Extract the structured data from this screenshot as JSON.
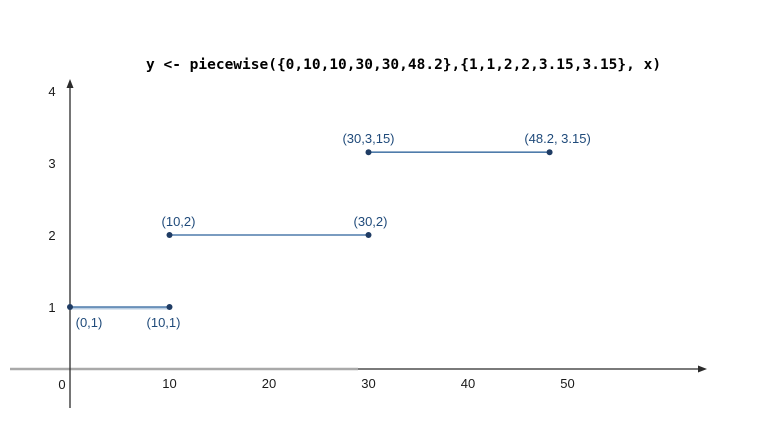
{
  "chart_data": {
    "type": "line",
    "title": "y <- piecewise({0,10,10,30,30,48.2},{1,1,2,2,3.15,3.15}, x)",
    "xlabel": "",
    "ylabel": "",
    "xlim": [
      0,
      63
    ],
    "ylim": [
      0,
      4.2
    ],
    "grid": false,
    "function": "piecewise",
    "x_breaks": [
      0,
      10,
      10,
      30,
      30,
      48.2
    ],
    "y_values": [
      1,
      1,
      2,
      2,
      3.15,
      3.15
    ],
    "x_ticks": [
      {
        "label": "10",
        "value": 10
      },
      {
        "label": "20",
        "value": 20
      },
      {
        "label": "30",
        "value": 30
      },
      {
        "label": "40",
        "value": 40
      },
      {
        "label": "50",
        "value": 50
      }
    ],
    "y_ticks": [
      {
        "label": "1",
        "value": 1
      },
      {
        "label": "2",
        "value": 2
      },
      {
        "label": "3",
        "value": 3
      },
      {
        "label": "4",
        "value": 4
      }
    ],
    "origin_label": "0",
    "segments": [
      {
        "points": [
          {
            "x": 0,
            "y": 1,
            "label": "(0,1)",
            "label_pos": "below",
            "label_dx": 19
          },
          {
            "x": 10,
            "y": 1,
            "label": "(10,1)",
            "label_pos": "below",
            "label_dx": -6
          }
        ]
      },
      {
        "points": [
          {
            "x": 10,
            "y": 2,
            "label": "(10,2)",
            "label_pos": "above",
            "label_dx": 9
          },
          {
            "x": 30,
            "y": 2,
            "label": "(30,2)",
            "label_pos": "above",
            "label_dx": 2
          }
        ]
      },
      {
        "points": [
          {
            "x": 30,
            "y": 3.15,
            "label": "(30,3,15)",
            "label_pos": "above",
            "label_dx": 0
          },
          {
            "x": 48.2,
            "y": 3.15,
            "label": "(48.2, 3.15)",
            "label_pos": "above",
            "label_dx": 8
          }
        ]
      }
    ]
  },
  "colors": {
    "background": "#ffffff",
    "axis": "#2b2b2b",
    "axis_gray": "#a9a9a9",
    "tick_label": "#1a1a1a",
    "segment_line": "#4f7cab",
    "segment_underlay": "#b9cde2",
    "point_dot": "#1f3c64",
    "point_label": "#1f4a7a",
    "title": "#000000"
  }
}
